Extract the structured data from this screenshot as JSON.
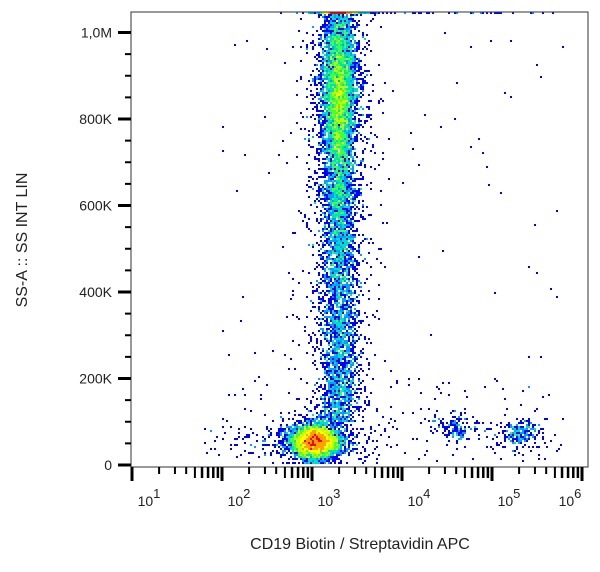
{
  "chart_data": {
    "type": "scatter",
    "subtype": "density-dot-plot",
    "xlabel": "CD19 Biotin / Streptavidin APC",
    "ylabel": "SS-A :: SS INT LIN",
    "x_scale": "log",
    "y_scale": "linear",
    "xlim": [
      6,
      1200000
    ],
    "ylim": [
      0,
      1050000
    ],
    "x_ticks": [
      {
        "base": "10",
        "exp": "1",
        "value": 10
      },
      {
        "base": "10",
        "exp": "2",
        "value": 100
      },
      {
        "base": "10",
        "exp": "3",
        "value": 1000
      },
      {
        "base": "10",
        "exp": "4",
        "value": 10000
      },
      {
        "base": "10",
        "exp": "5",
        "value": 100000
      },
      {
        "base": "10",
        "exp": "6",
        "value": 1000000
      }
    ],
    "y_ticks": [
      {
        "label": "0",
        "value": 0
      },
      {
        "label": "200K",
        "value": 200000
      },
      {
        "label": "400K",
        "value": 400000
      },
      {
        "label": "600K",
        "value": 600000
      },
      {
        "label": "800K",
        "value": 800000
      },
      {
        "label": "1,0M",
        "value": 1000000
      }
    ],
    "grid": false,
    "colormap": [
      "#0000ff",
      "#00a0ff",
      "#00e0c0",
      "#40ff40",
      "#c0ff00",
      "#ffff00",
      "#ffa000",
      "#ff0000"
    ],
    "populations": [
      {
        "x_center": 1100,
        "x_log_sd": 0.12,
        "y_center": 55000,
        "y_sd": 18000,
        "relative_size": 0.33
      },
      {
        "x_center": 2000,
        "x_log_sd": 0.09,
        "y_center": 850000,
        "y_sd": 130000,
        "relative_size": 0.42
      },
      {
        "x_center": 2000,
        "x_log_sd": 0.1,
        "y_range": [
          100000,
          650000
        ],
        "relative_size": 0.2
      },
      {
        "x_center": 40000,
        "x_log_sd": 0.12,
        "y_center": 85000,
        "y_sd": 15000,
        "relative_size": 0.01
      },
      {
        "x_center": 200000,
        "x_log_sd": 0.1,
        "y_center": 75000,
        "y_sd": 15000,
        "relative_size": 0.015
      }
    ]
  }
}
